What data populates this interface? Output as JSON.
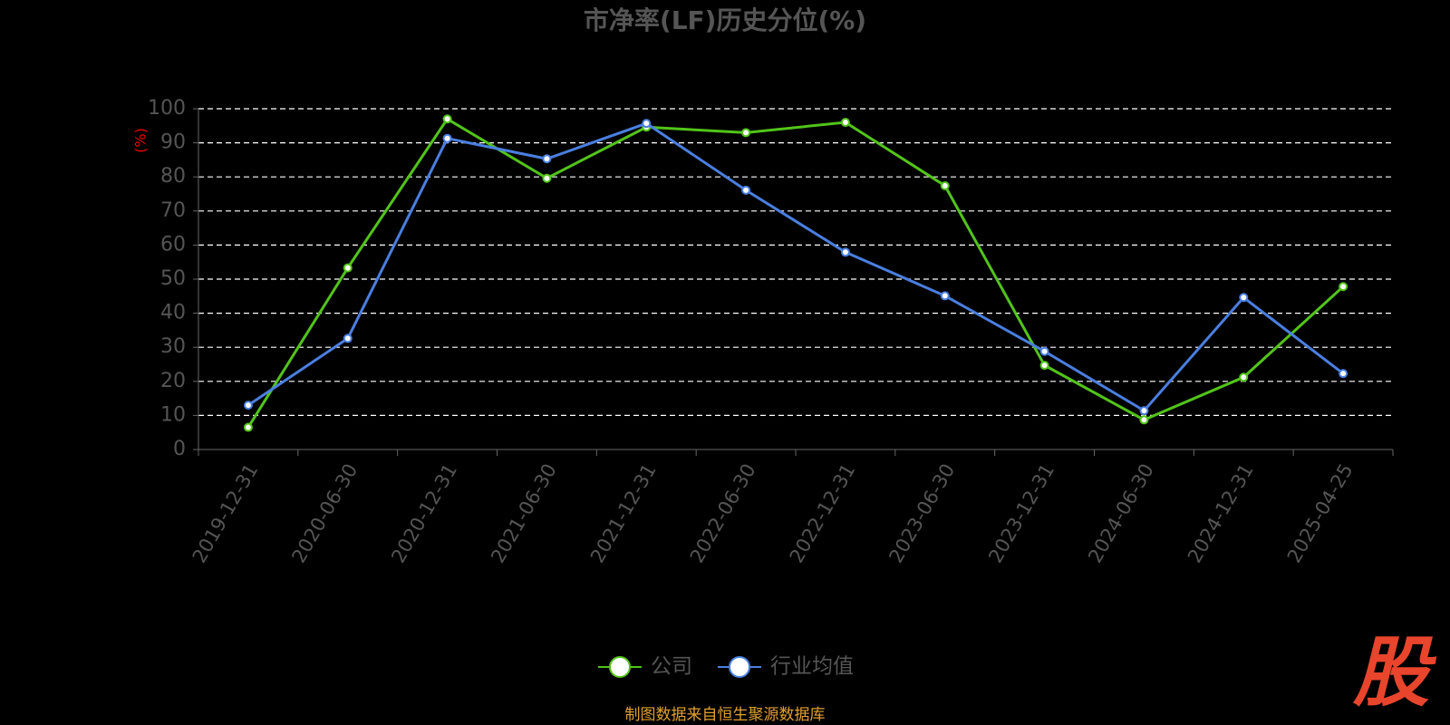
{
  "chart_data": {
    "type": "line",
    "title": "市净率(LF)历史分位(%)",
    "y_label": "(%)",
    "categories": [
      "2019-12-31",
      "2020-06-30",
      "2020-12-31",
      "2021-06-30",
      "2021-12-31",
      "2022-06-30",
      "2022-12-31",
      "2023-06-30",
      "2023-12-31",
      "2024-06-30",
      "2024-12-31",
      "2025-04-25"
    ],
    "series": [
      {
        "name": "公司",
        "color": "#52c41a",
        "values": [
          6.5,
          53.3,
          97,
          79.6,
          94.6,
          93,
          96,
          77.4,
          24.7,
          8.7,
          21.2,
          47.8
        ]
      },
      {
        "name": "行业均值",
        "color": "#4a7fe0",
        "values": [
          13,
          32.6,
          91.3,
          85.3,
          95.7,
          76.1,
          57.9,
          45.1,
          28.8,
          11.4,
          44.6,
          22.3
        ]
      }
    ],
    "ylim": [
      0,
      100
    ],
    "yticks": [
      0,
      10,
      20,
      30,
      40,
      50,
      60,
      70,
      80,
      90,
      100
    ],
    "grid": true,
    "legend": "bottom",
    "source": "制图数据来自恒生聚源数据库",
    "watermark": "股"
  }
}
